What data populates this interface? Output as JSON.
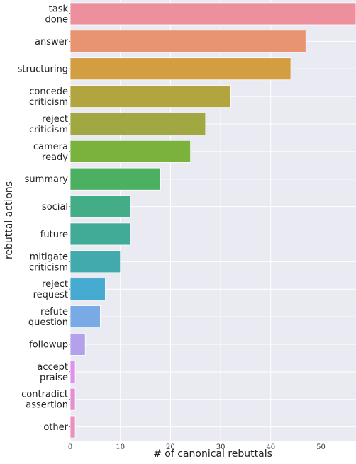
{
  "chart_data": {
    "type": "bar",
    "orientation": "horizontal",
    "xlabel": "# of canonical rebuttals",
    "ylabel": "rebuttal actions",
    "xlim": [
      0,
      57
    ],
    "xticks": [
      0,
      10,
      20,
      30,
      40,
      50
    ],
    "grid": true,
    "background": "#eaeaf2",
    "categories": [
      [
        "task",
        "done"
      ],
      [
        "answer"
      ],
      [
        "structuring"
      ],
      [
        "concede",
        "criticism"
      ],
      [
        "reject",
        "criticism"
      ],
      [
        "camera",
        "ready"
      ],
      [
        "summary"
      ],
      [
        "social"
      ],
      [
        "future"
      ],
      [
        "mitigate",
        "criticism"
      ],
      [
        "reject",
        "request"
      ],
      [
        "refute",
        "question"
      ],
      [
        "followup"
      ],
      [
        "accept",
        "praise"
      ],
      [
        "contradict",
        "assertion"
      ],
      [
        "other"
      ]
    ],
    "values": [
      57,
      47,
      44,
      32,
      27,
      24,
      18,
      12,
      12,
      10,
      7,
      6,
      3,
      1,
      1,
      1
    ],
    "colors": [
      "#ee8f9e",
      "#e99471",
      "#d39d42",
      "#b2a43f",
      "#a2a841",
      "#7bb23e",
      "#4bb060",
      "#43ad87",
      "#41ab98",
      "#42aaac",
      "#47aad0",
      "#7aaae6",
      "#b3a1eb",
      "#de92e9",
      "#e78dd6",
      "#ec8fbe"
    ]
  }
}
